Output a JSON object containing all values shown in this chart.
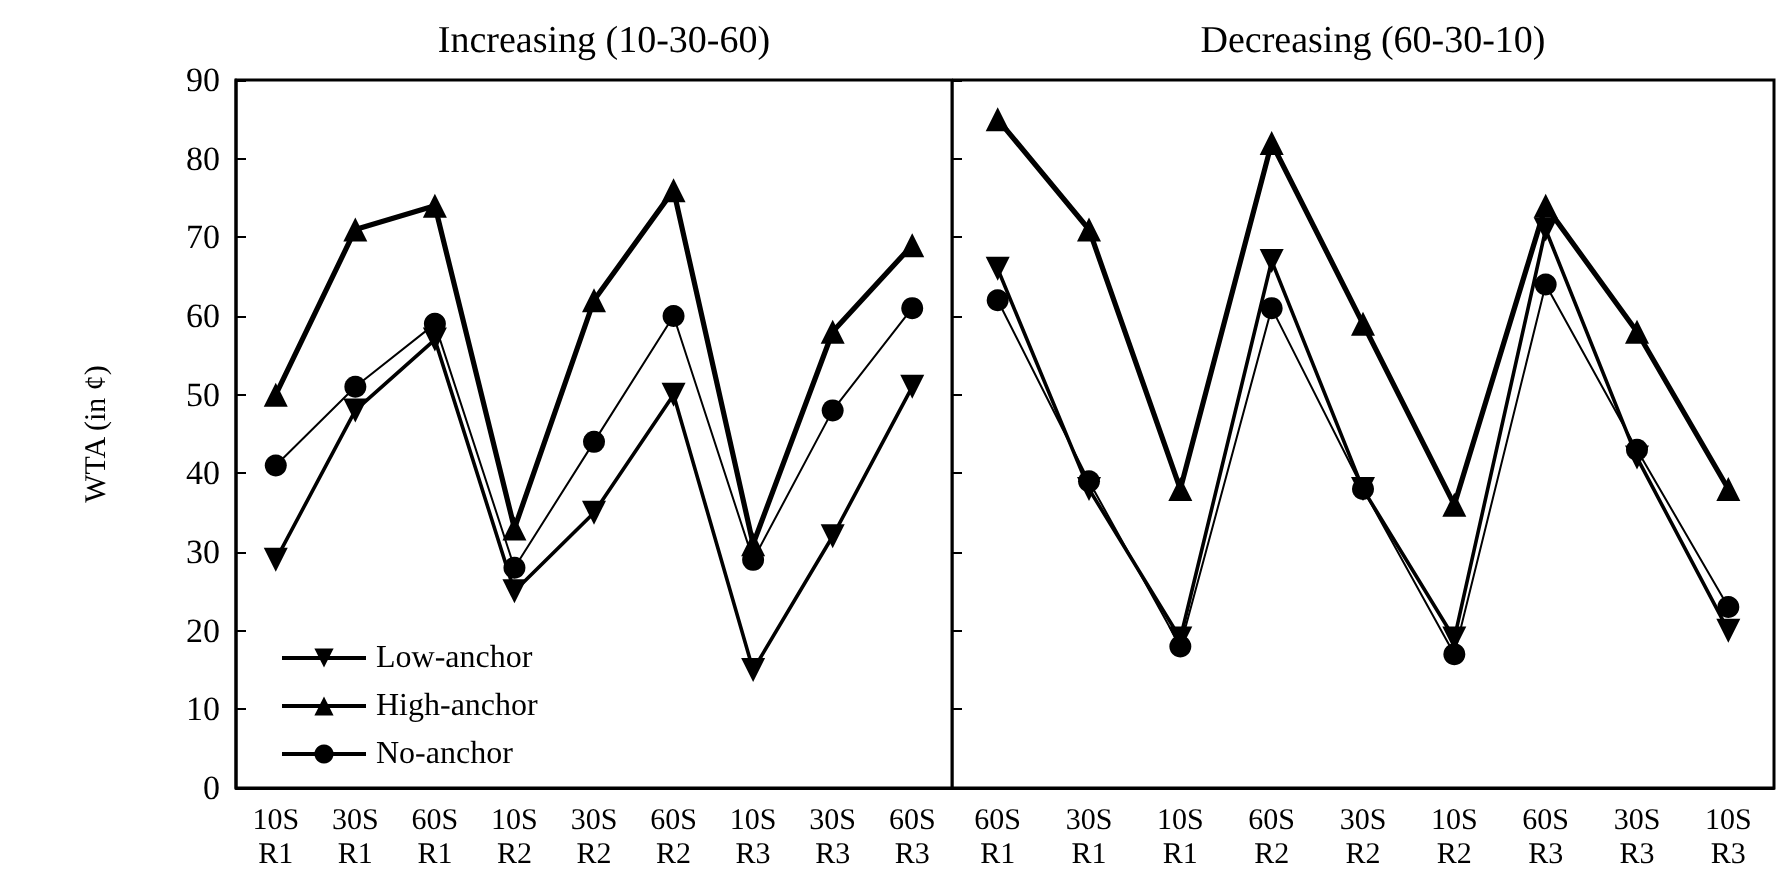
{
  "chart_data": [
    {
      "type": "line",
      "title": "Increasing (10-30-60)",
      "ylabel": "WTA (in ¢)",
      "categories": [
        "10S R1",
        "30S R1",
        "60S R1",
        "10S R2",
        "30S R2",
        "60S R2",
        "10S R3",
        "30S R3",
        "60S R3"
      ],
      "ylim": [
        0,
        90
      ],
      "yticks": [
        0,
        10,
        20,
        30,
        40,
        50,
        60,
        70,
        80,
        90
      ],
      "grid": false,
      "legend": "bottom left",
      "series": [
        {
          "name": "Low-anchor",
          "color": "#000000",
          "marker": "triangle-down",
          "values": [
            29,
            48,
            57,
            25,
            35,
            50,
            15,
            32,
            51
          ]
        },
        {
          "name": "High-anchor",
          "color": "#000000",
          "marker": "triangle",
          "values": [
            50,
            71,
            74,
            33,
            62,
            76,
            31,
            58,
            69
          ]
        },
        {
          "name": "No-anchor",
          "color": "#000000",
          "marker": "circle",
          "values": [
            41,
            51,
            59,
            28,
            44,
            60,
            29,
            48,
            61
          ]
        }
      ]
    },
    {
      "type": "line",
      "title": "Decreasing (60-30-10)",
      "categories": [
        "60S R1",
        "30S R1",
        "10S R1",
        "60S R2",
        "30S R2",
        "10S R2",
        "60S R3",
        "30S R3",
        "10S R3"
      ],
      "ylim": [
        0,
        90
      ],
      "yticks": [
        0,
        10,
        20,
        30,
        40,
        50,
        60,
        70,
        80,
        90
      ],
      "grid": false,
      "tick_labels": "x",
      "series": [
        {
          "color": "#000000",
          "marker": "triangle-down",
          "values": [
            66,
            38,
            19,
            67,
            38,
            19,
            71,
            42,
            20
          ]
        },
        {
          "color": "#000000",
          "marker": "triangle",
          "values": [
            85,
            71,
            38,
            82,
            59,
            36,
            74,
            58,
            38
          ]
        },
        {
          "color": "#000000",
          "marker": "circle",
          "values": [
            62,
            39,
            18,
            61,
            38,
            17,
            64,
            43,
            23
          ]
        }
      ]
    }
  ]
}
